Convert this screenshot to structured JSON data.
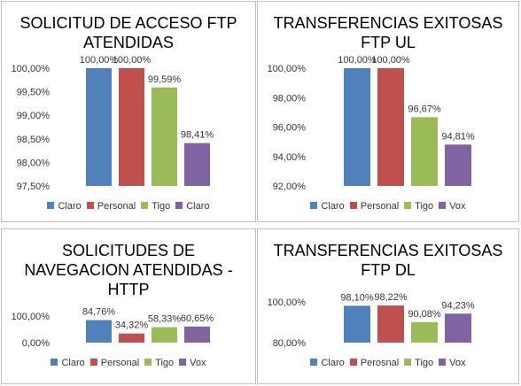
{
  "chart_data": [
    {
      "type": "bar",
      "title_lines": [
        "SOLICITUD DE ACCESO FTP",
        "ATENDIDAS"
      ],
      "categories": [
        "Claro",
        "Personal",
        "Tigo",
        "Claro"
      ],
      "values": [
        100.0,
        100.0,
        99.59,
        98.41
      ],
      "value_labels": [
        "100,00%",
        "100,00%",
        "99,59%",
        "98,41%"
      ],
      "colors": [
        "#4f81bd",
        "#c0504d",
        "#9bbb59",
        "#8064a2"
      ],
      "ylim": [
        97.5,
        100
      ],
      "yticks": [
        97.5,
        98,
        98.5,
        99,
        99.5,
        100
      ],
      "ytick_labels": [
        "97,50%",
        "98,00%",
        "98,50%",
        "99,00%",
        "99,50%",
        "100,00%"
      ],
      "legend_position": "bottom"
    },
    {
      "type": "bar",
      "title_lines": [
        "TRANSFERENCIAS EXITOSAS",
        "FTP UL"
      ],
      "categories": [
        "Claro",
        "Personal",
        "Tigo",
        "Vox"
      ],
      "values": [
        100.0,
        100.0,
        96.67,
        94.81
      ],
      "value_labels": [
        "100,00%",
        "100,00%",
        "96,67%",
        "94,81%"
      ],
      "colors": [
        "#4f81bd",
        "#c0504d",
        "#9bbb59",
        "#8064a2"
      ],
      "ylim": [
        92,
        100
      ],
      "yticks": [
        92,
        94,
        96,
        98,
        100
      ],
      "ytick_labels": [
        "92,00%",
        "94,00%",
        "96,00%",
        "98,00%",
        "100,00%"
      ],
      "legend_position": "bottom"
    },
    {
      "type": "bar",
      "title_lines": [
        "SOLICITUDES DE",
        "NAVEGACION ATENDIDAS -",
        "HTTP"
      ],
      "categories": [
        "Claro",
        "Personal",
        "Tigo",
        "Vox"
      ],
      "values": [
        84.76,
        34.32,
        58.33,
        60.65
      ],
      "value_labels": [
        "84,76%",
        "34,32%",
        "58,33%",
        "60,65%"
      ],
      "colors": [
        "#4f81bd",
        "#c0504d",
        "#9bbb59",
        "#8064a2"
      ],
      "ylim": [
        0,
        100
      ],
      "yticks": [
        0,
        100
      ],
      "ytick_labels": [
        "0,00%",
        "100,00%"
      ],
      "legend_position": "bottom"
    },
    {
      "type": "bar",
      "title_lines": [
        "TRANSFERENCIAS EXITOSAS",
        "FTP DL"
      ],
      "categories": [
        "Claro",
        "Perosnal",
        "Tigo",
        "Vox"
      ],
      "values": [
        98.1,
        98.22,
        90.08,
        94.23
      ],
      "value_labels": [
        "98,10%",
        "98,22%",
        "90,08%",
        "94,23%"
      ],
      "colors": [
        "#4f81bd",
        "#c0504d",
        "#9bbb59",
        "#8064a2"
      ],
      "ylim": [
        80,
        100
      ],
      "yticks": [
        80,
        100
      ],
      "ytick_labels": [
        "80,00%",
        "100,00%"
      ],
      "legend_position": "bottom"
    }
  ]
}
